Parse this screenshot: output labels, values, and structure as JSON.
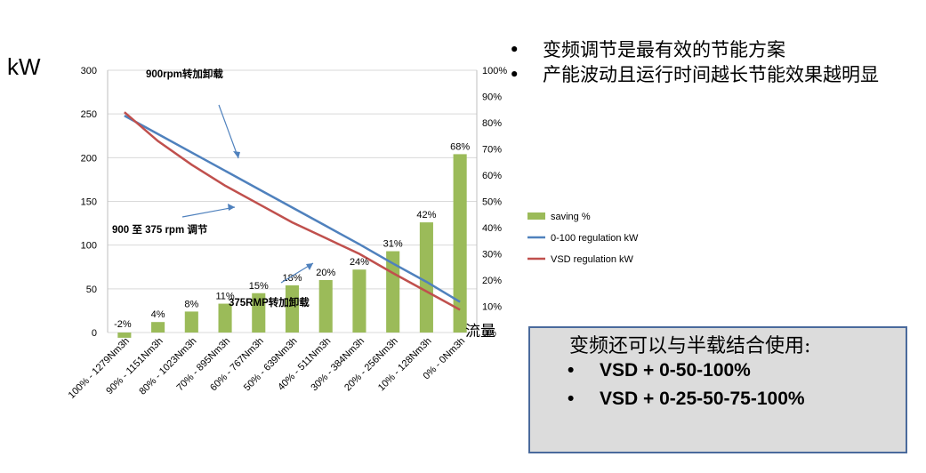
{
  "unit_label": "kW",
  "bullets": [
    "变频调节是最有效的节能方案",
    "产能波动且运行时间越长节能效果越明显"
  ],
  "bullet_symbol": "•",
  "box": {
    "title": "变频还可以与半载结合使用:",
    "items": [
      "VSD  +  0-50-100%",
      "VSD  +  0-25-50-75-100%"
    ],
    "bg_color": "#dcdcdc",
    "border_color": "#4a6a9c"
  },
  "annotations": {
    "top": "900rpm转加卸载",
    "middle": "900 至  375 rpm 调节",
    "lower": "375RMP转加卸载",
    "flow": "流量"
  },
  "chart_data": {
    "type": "bar",
    "categories": [
      "100% - 1279Nm3h",
      "90% - 1151Nm3h",
      "80% - 1023Nm3h",
      "70% - 895Nm3h",
      "60% - 767Nm3h",
      "50% - 639Nm3h",
      "40% - 511Nm3h",
      "30% - 384Nm3h",
      "20% - 256Nm3h",
      "10% - 128Nm3h",
      "0% - 0Nm3h"
    ],
    "y_ticks": [
      "0",
      "50",
      "100",
      "150",
      "200",
      "250",
      "300"
    ],
    "y2_ticks": [
      "0%",
      "10%",
      "20%",
      "30%",
      "40%",
      "50%",
      "60%",
      "70%",
      "80%",
      "90%",
      "100%"
    ],
    "ylim": [
      0,
      300
    ],
    "y2lim": [
      0,
      100
    ],
    "grid": true,
    "legend_position": "right",
    "series": [
      {
        "name": "saving %",
        "kind": "bar",
        "axis": "right",
        "color": "#9bbb59",
        "values": [
          -2,
          4,
          8,
          11,
          15,
          18,
          20,
          24,
          31,
          42,
          68
        ],
        "labels": [
          "-2%",
          "4%",
          "8%",
          "11%",
          "15%",
          "18%",
          "20%",
          "24%",
          "31%",
          "42%",
          "68%"
        ]
      },
      {
        "name": "0-100 regulation kW",
        "kind": "line",
        "axis": "left",
        "color": "#4f81bd",
        "values": [
          248,
          227,
          206,
          185,
          164,
          143,
          122,
          101,
          79,
          58,
          35
        ]
      },
      {
        "name": "VSD regulation kW",
        "kind": "line",
        "axis": "left",
        "color": "#c0504d",
        "values": [
          252,
          219,
          192,
          168,
          147,
          126,
          108,
          90,
          68,
          47,
          26
        ]
      }
    ]
  }
}
